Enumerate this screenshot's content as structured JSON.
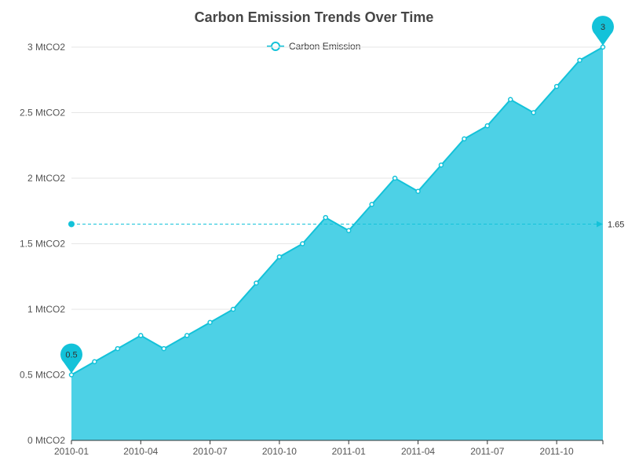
{
  "colors": {
    "accent": "#13c2d9",
    "area": "#4dd1e6",
    "grid": "#e6e6e6",
    "axis": "#333333",
    "text": "#555555"
  },
  "chart_data": {
    "type": "area",
    "title": "Carbon Emission Trends Over Time",
    "legend": {
      "position": "top-center",
      "entries": [
        "Carbon Emission"
      ]
    },
    "x": [
      "2010-01",
      "2010-02",
      "2010-03",
      "2010-04",
      "2010-05",
      "2010-06",
      "2010-07",
      "2010-08",
      "2010-09",
      "2010-10",
      "2010-11",
      "2010-12",
      "2011-01",
      "2011-02",
      "2011-03",
      "2011-04",
      "2011-05",
      "2011-06",
      "2011-07",
      "2011-08",
      "2011-09",
      "2011-10",
      "2011-11",
      "2011-12"
    ],
    "x_tick_labels": [
      "2010-01",
      "2010-04",
      "2010-07",
      "2010-10",
      "2011-01",
      "2011-04",
      "2011-07",
      "2011-10"
    ],
    "series": [
      {
        "name": "Carbon Emission",
        "values": [
          0.5,
          0.6,
          0.7,
          0.8,
          0.7,
          0.8,
          0.9,
          1.0,
          1.2,
          1.4,
          1.5,
          1.7,
          1.6,
          1.8,
          2.0,
          1.9,
          2.1,
          2.3,
          2.4,
          2.6,
          2.5,
          2.7,
          2.9,
          3.0
        ]
      }
    ],
    "y_ticks": [
      0,
      0.5,
      1,
      1.5,
      2,
      2.5,
      3
    ],
    "y_tick_labels": [
      "0 MtCO2",
      "0.5 MtCO2",
      "1 MtCO2",
      "1.5 MtCO2",
      "2 MtCO2",
      "2.5 MtCO2",
      "3 MtCO2"
    ],
    "ylim": [
      0,
      3
    ],
    "grid": true,
    "mark_points": [
      {
        "label": "0.5",
        "x": "2010-01",
        "y": 0.5
      },
      {
        "label": "3",
        "x": "2011-12",
        "y": 3.0
      }
    ],
    "mark_line": {
      "label": "1.65",
      "y": 1.65
    }
  }
}
